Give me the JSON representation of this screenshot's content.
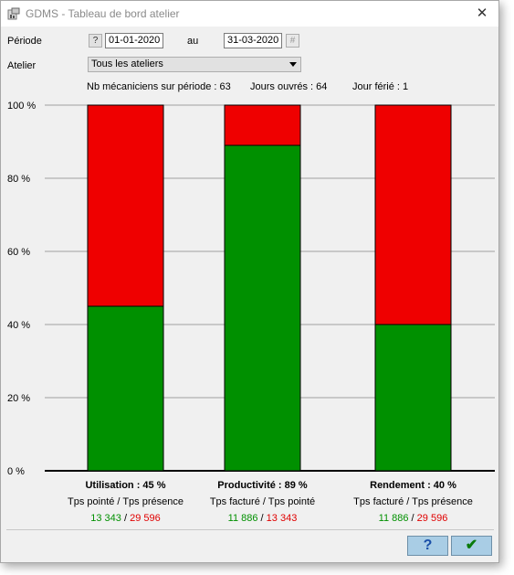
{
  "window": {
    "title": "GDMS - Tableau de bord atelier",
    "close_glyph": "✕"
  },
  "period": {
    "label": "Période",
    "help_button": "?",
    "from": "01-01-2020",
    "separator": "au",
    "to": "31-03-2020",
    "calendar_button": "#"
  },
  "workshop": {
    "label": "Atelier",
    "selected": "Tous les ateliers"
  },
  "stats": {
    "mechanics": "Nb mécaniciens sur période : 63",
    "working_days": "Jours ouvrés : 64",
    "holiday": "Jour férié : 1"
  },
  "colors": {
    "good": "#009000",
    "bad": "#ef0000",
    "good_text": "#009000",
    "bad_text": "#e00000"
  },
  "chart_data": {
    "type": "bar",
    "stacked": true,
    "ylim": [
      0,
      100
    ],
    "yticks": [
      "0 %",
      "20 %",
      "40 %",
      "60 %",
      "80 %",
      "100 %"
    ],
    "grid": true,
    "categories": [
      "Utilisation",
      "Productivité",
      "Rendement"
    ],
    "series": [
      {
        "values": [
          45,
          89,
          40
        ]
      },
      {
        "values": [
          55,
          11,
          60
        ]
      }
    ]
  },
  "bars": [
    {
      "caption": "Utilisation : 45 %",
      "ratio": "Tps pointé / Tps présence",
      "numerator": "13 343",
      "slash": "/",
      "denominator": "29 596"
    },
    {
      "caption": "Productivité : 89 %",
      "ratio": "Tps facturé / Tps pointé",
      "numerator": "11 886",
      "slash": "/",
      "denominator": "13 343"
    },
    {
      "caption": "Rendement : 40 %",
      "ratio": "Tps facturé / Tps présence",
      "numerator": "11 886",
      "slash": "/",
      "denominator": "29 596"
    }
  ],
  "footer": {
    "help_label": "?",
    "ok_label": "✔"
  }
}
